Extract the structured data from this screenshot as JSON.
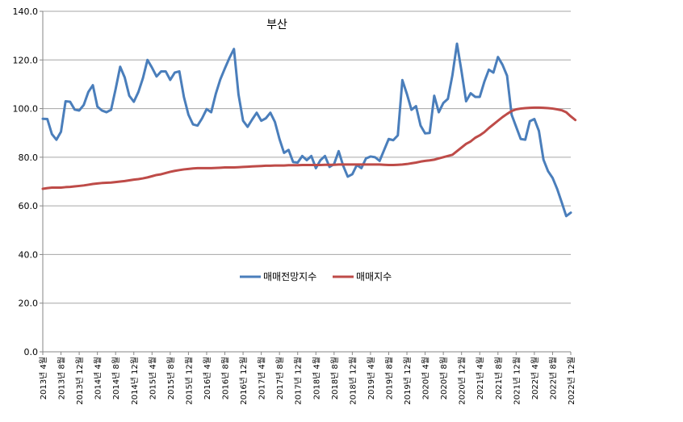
{
  "chart_data": {
    "type": "line",
    "title": "부산",
    "xlabel": "",
    "ylabel": "",
    "ylim": [
      0,
      140
    ],
    "yticks": [
      "0.0",
      "20.0",
      "40.0",
      "60.0",
      "80.0",
      "100.0",
      "120.0",
      "140.0"
    ],
    "grid": "horizontal",
    "legend_position": "center",
    "x_tick_labels": [
      "2013년 4월",
      "2013년 8월",
      "2013년 12월",
      "2014년 4월",
      "2014년 8월",
      "2014년 12월",
      "2015년 4월",
      "2015년 8월",
      "2015년 12월",
      "2016년 4월",
      "2016년 8월",
      "2016년 12월",
      "2017년 4월",
      "2017년 8월",
      "2017년 12월",
      "2018년 4월",
      "2018년 8월",
      "2018년 12월",
      "2019년 4월",
      "2019년 8월",
      "2019년 12월",
      "2020년 4월",
      "2020년 8월",
      "2020년 12월",
      "2021년 4월",
      "2021년 8월",
      "2021년 12월",
      "2022년 4월",
      "2022년 8월",
      "2022년 12월"
    ],
    "x_start": "2013-04",
    "x_end": "2022-12",
    "series": [
      {
        "name": "매매전망지수",
        "color": "#4a7ebb",
        "values": [
          95.8,
          95.7,
          89.5,
          87.2,
          90.5,
          103.0,
          102.8,
          99.6,
          99.2,
          101.5,
          106.8,
          109.6,
          100.8,
          99.2,
          98.5,
          99.5,
          108.0,
          117.2,
          112.8,
          105.3,
          102.8,
          106.8,
          112.5,
          120.0,
          116.8,
          113.2,
          115.3,
          115.3,
          111.8,
          114.8,
          115.3,
          104.8,
          97.5,
          93.5,
          93.0,
          96.0,
          99.8,
          98.5,
          106.0,
          112.0,
          116.5,
          120.8,
          124.5,
          105.8,
          95.0,
          92.5,
          95.5,
          98.3,
          95.0,
          96.0,
          98.3,
          94.5,
          87.5,
          81.8,
          83.0,
          78.0,
          77.8,
          80.5,
          78.8,
          80.5,
          75.5,
          78.8,
          80.5,
          76.0,
          77.2,
          82.5,
          76.5,
          72.0,
          73.0,
          76.8,
          75.5,
          79.5,
          80.3,
          80.0,
          78.5,
          83.0,
          87.5,
          87.0,
          89.0,
          111.7,
          106.0,
          99.5,
          101.0,
          93.0,
          89.8,
          90.0,
          105.3,
          98.5,
          102.3,
          104.0,
          113.8,
          126.7,
          115.3,
          103.0,
          106.3,
          104.8,
          104.8,
          111.0,
          116.0,
          114.8,
          121.2,
          118.0,
          113.5,
          97.5,
          92.5,
          87.5,
          87.2,
          94.8,
          95.7,
          90.8,
          79.0,
          74.3,
          71.5,
          67.0,
          61.5,
          55.8,
          57.2
        ]
      },
      {
        "name": "매매지수",
        "color": "#be4b48",
        "values": [
          67.0,
          67.3,
          67.5,
          67.5,
          67.5,
          67.7,
          67.8,
          68.0,
          68.2,
          68.4,
          68.7,
          69.0,
          69.2,
          69.4,
          69.5,
          69.6,
          69.8,
          70.0,
          70.2,
          70.5,
          70.8,
          71.0,
          71.3,
          71.7,
          72.2,
          72.7,
          73.0,
          73.5,
          74.0,
          74.4,
          74.7,
          75.0,
          75.2,
          75.4,
          75.5,
          75.5,
          75.5,
          75.5,
          75.6,
          75.7,
          75.8,
          75.8,
          75.8,
          75.9,
          76.0,
          76.1,
          76.2,
          76.3,
          76.4,
          76.5,
          76.5,
          76.6,
          76.6,
          76.6,
          76.7,
          76.7,
          76.7,
          76.8,
          76.8,
          76.8,
          76.8,
          76.8,
          76.9,
          76.9,
          76.9,
          77.0,
          77.0,
          77.0,
          77.0,
          77.0,
          77.0,
          77.0,
          77.0,
          77.0,
          77.0,
          76.9,
          76.8,
          76.8,
          76.9,
          77.0,
          77.2,
          77.5,
          77.8,
          78.2,
          78.5,
          78.7,
          79.0,
          79.5,
          80.0,
          80.5,
          81.0,
          82.5,
          84.0,
          85.5,
          86.5,
          88.0,
          89.0,
          90.3,
          92.0,
          93.5,
          95.0,
          96.5,
          97.8,
          99.0,
          99.7,
          100.0,
          100.2,
          100.3,
          100.4,
          100.4,
          100.3,
          100.2,
          100.0,
          99.7,
          99.3,
          98.5,
          96.8,
          95.3
        ]
      }
    ]
  }
}
